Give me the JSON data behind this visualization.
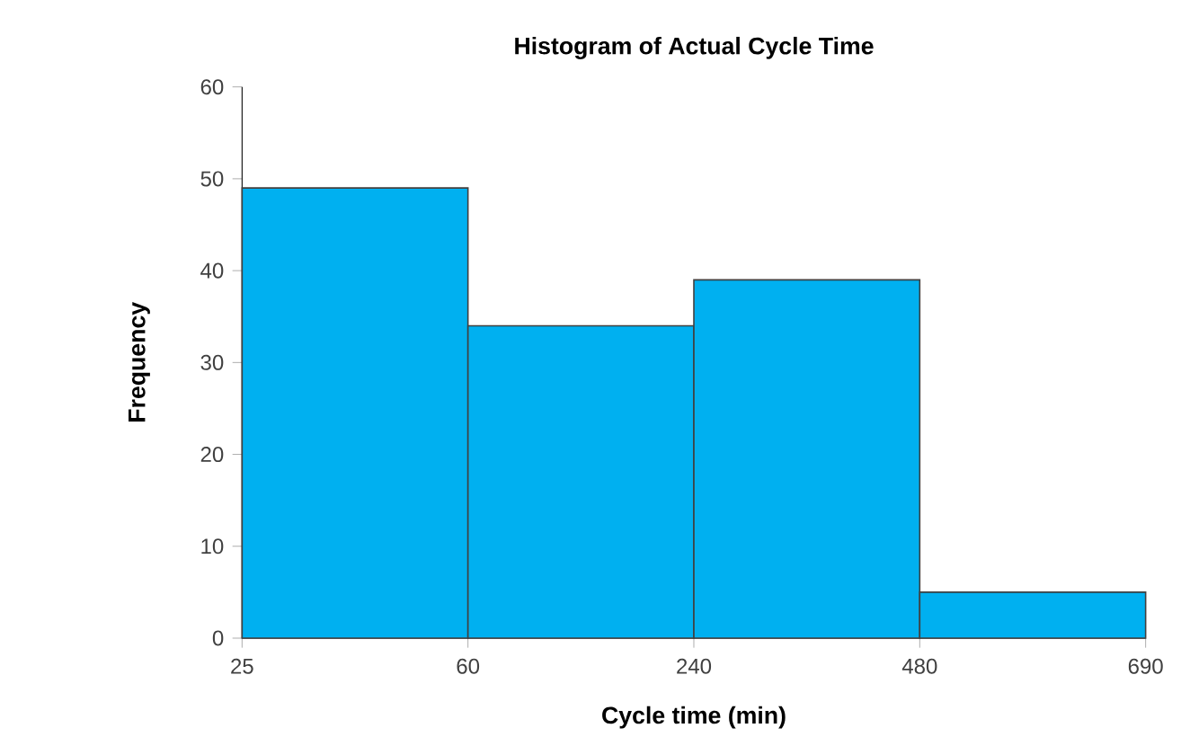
{
  "chart_data": {
    "type": "bar",
    "title": "Histogram of Actual Cycle Time",
    "xlabel": "Cycle time (min)",
    "ylabel": "Frequency",
    "categories": [
      null,
      null,
      null,
      null
    ],
    "values": [
      49,
      34,
      39,
      5
    ],
    "color": "#00b0f0",
    "annotations": [
      "25",
      "60",
      "240",
      "480",
      "690"
    ],
    "ylim": [
      0,
      60
    ],
    "yticks": [
      0,
      10,
      20,
      30,
      40,
      50,
      60
    ]
  }
}
